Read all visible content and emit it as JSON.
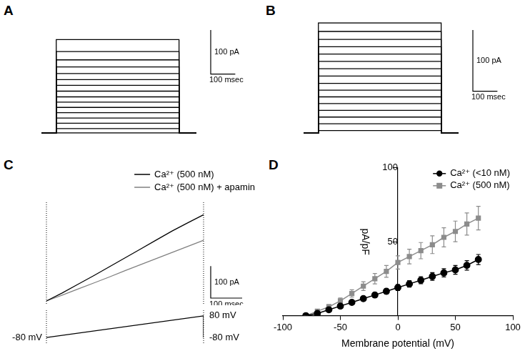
{
  "chart_data": [
    {
      "type": "line",
      "title": "A",
      "color": "#000000",
      "tick_labels": false,
      "x": [
        -60,
        0,
        0,
        500,
        500,
        570
      ],
      "scale_bars": [
        {
          "axis": "y",
          "value": 100,
          "label": "100 pA"
        },
        {
          "axis": "x",
          "value": 100,
          "label": "100 msec"
        }
      ],
      "series": [
        {
          "values": [
            0,
            0,
            0,
            0,
            0,
            0
          ]
        },
        {
          "values": [
            0,
            0,
            10,
            10,
            0,
            0
          ]
        },
        {
          "values": [
            0,
            0,
            22,
            22,
            0,
            0
          ]
        },
        {
          "values": [
            0,
            0,
            34,
            34,
            0,
            0
          ]
        },
        {
          "values": [
            0,
            0,
            46,
            46,
            0,
            0
          ]
        },
        {
          "values": [
            0,
            0,
            58,
            58,
            0,
            0
          ]
        },
        {
          "values": [
            0,
            0,
            70,
            70,
            0,
            0
          ]
        },
        {
          "values": [
            0,
            0,
            82,
            82,
            0,
            0
          ]
        },
        {
          "values": [
            0,
            0,
            95,
            95,
            0,
            0
          ]
        },
        {
          "values": [
            0,
            0,
            108,
            108,
            0,
            0
          ]
        },
        {
          "values": [
            0,
            0,
            121,
            121,
            0,
            0
          ]
        },
        {
          "values": [
            0,
            0,
            135,
            135,
            0,
            0
          ]
        },
        {
          "values": [
            0,
            0,
            150,
            150,
            0,
            0
          ]
        },
        {
          "values": [
            0,
            0,
            166,
            166,
            0,
            0
          ]
        },
        {
          "values": [
            0,
            0,
            185,
            185,
            0,
            0
          ]
        },
        {
          "values": [
            0,
            0,
            212,
            212,
            0,
            0
          ]
        }
      ]
    },
    {
      "type": "line",
      "title": "B",
      "color": "#000000",
      "tick_labels": false,
      "x": [
        -60,
        0,
        0,
        500,
        500,
        570
      ],
      "scale_bars": [
        {
          "axis": "y",
          "value": 100,
          "label": "100 pA"
        },
        {
          "axis": "x",
          "value": 100,
          "label": "100 msec"
        }
      ],
      "series": [
        {
          "values": [
            0,
            0,
            4,
            4,
            0,
            0
          ]
        },
        {
          "values": [
            0,
            0,
            15,
            15,
            0,
            0
          ]
        },
        {
          "values": [
            0,
            0,
            26,
            26,
            0,
            0
          ]
        },
        {
          "values": [
            0,
            0,
            37,
            37,
            0,
            0
          ]
        },
        {
          "values": [
            0,
            0,
            48,
            48,
            0,
            0
          ]
        },
        {
          "values": [
            0,
            0,
            59,
            59,
            0,
            0
          ]
        },
        {
          "values": [
            0,
            0,
            70,
            70,
            0,
            0
          ]
        },
        {
          "values": [
            0,
            0,
            81,
            81,
            0,
            0
          ]
        },
        {
          "values": [
            0,
            0,
            93,
            93,
            0,
            0
          ]
        },
        {
          "values": [
            0,
            0,
            105,
            105,
            0,
            0
          ]
        },
        {
          "values": [
            0,
            0,
            117,
            117,
            0,
            0
          ]
        },
        {
          "values": [
            0,
            0,
            129,
            129,
            0,
            0
          ]
        },
        {
          "values": [
            0,
            0,
            141,
            141,
            0,
            0
          ]
        },
        {
          "values": [
            0,
            0,
            153,
            153,
            0,
            0
          ]
        },
        {
          "values": [
            0,
            0,
            166,
            166,
            0,
            0
          ]
        },
        {
          "values": [
            0,
            0,
            180,
            180,
            0,
            0
          ]
        }
      ]
    },
    {
      "type": "line",
      "title": "C",
      "tick_labels": false,
      "legend": "upper right",
      "x": [
        0,
        50,
        100,
        150,
        200,
        250,
        300,
        350,
        400,
        450,
        500
      ],
      "scale_bars": [
        {
          "axis": "y",
          "value": 100,
          "label": "100 pA"
        },
        {
          "axis": "x",
          "value": 100,
          "label": "100 msec"
        }
      ],
      "series": [
        {
          "name": "Ca²⁺ (500 nM)",
          "color": "#000000",
          "values": [
            0,
            25,
            52,
            79,
            107,
            135,
            163,
            191,
            219,
            245,
            270
          ]
        },
        {
          "name": "Ca²⁺ (500 nM) + apamin",
          "color": "#808080",
          "values": [
            0,
            18,
            37,
            56,
            75,
            95,
            114,
            133,
            152,
            171,
            190
          ]
        }
      ],
      "protocol": {
        "x": [
          0,
          500,
          500
        ],
        "values": [
          -80,
          80,
          -80
        ],
        "labels": [
          "-80 mV",
          "80 mV",
          "-80 mV"
        ]
      }
    },
    {
      "type": "line",
      "title": "D",
      "legend": "upper right",
      "xlabel": "Membrane potential (mV)",
      "ylabel": "pA/pF",
      "xlim": [
        -100,
        100
      ],
      "xticks": [
        -100,
        -50,
        0,
        50,
        100
      ],
      "ylim": [
        0,
        100
      ],
      "yticks": [
        50,
        100
      ],
      "x": [
        -80,
        -70,
        -60,
        -50,
        -40,
        -30,
        -20,
        -10,
        0,
        10,
        20,
        30,
        40,
        50,
        60,
        70
      ],
      "series": [
        {
          "name": "Ca²⁺ (<10 nM)",
          "color": "#000000",
          "marker": "circle",
          "values": [
            0,
            1.5,
            4,
            6.5,
            9,
            11.5,
            14,
            16.5,
            19,
            21.5,
            24,
            26.5,
            29,
            31,
            34,
            38
          ],
          "errors": [
            0.3,
            0.5,
            0.8,
            1,
            1.2,
            1.4,
            1.6,
            1.8,
            2,
            2.2,
            2.4,
            2.6,
            2.8,
            3,
            3.2,
            3.4
          ]
        },
        {
          "name": "Ca²⁺ (500 nM)",
          "color": "#8c8c8c",
          "marker": "square",
          "values": [
            0,
            3,
            6,
            10,
            15,
            20,
            25,
            30,
            36,
            40,
            44,
            48,
            53,
            57,
            62,
            66
          ],
          "errors": [
            0.5,
            1,
            1.5,
            2,
            2.5,
            3,
            3.5,
            4,
            4.5,
            5,
            5.5,
            6,
            6.5,
            7,
            7.5,
            8
          ]
        }
      ]
    }
  ]
}
